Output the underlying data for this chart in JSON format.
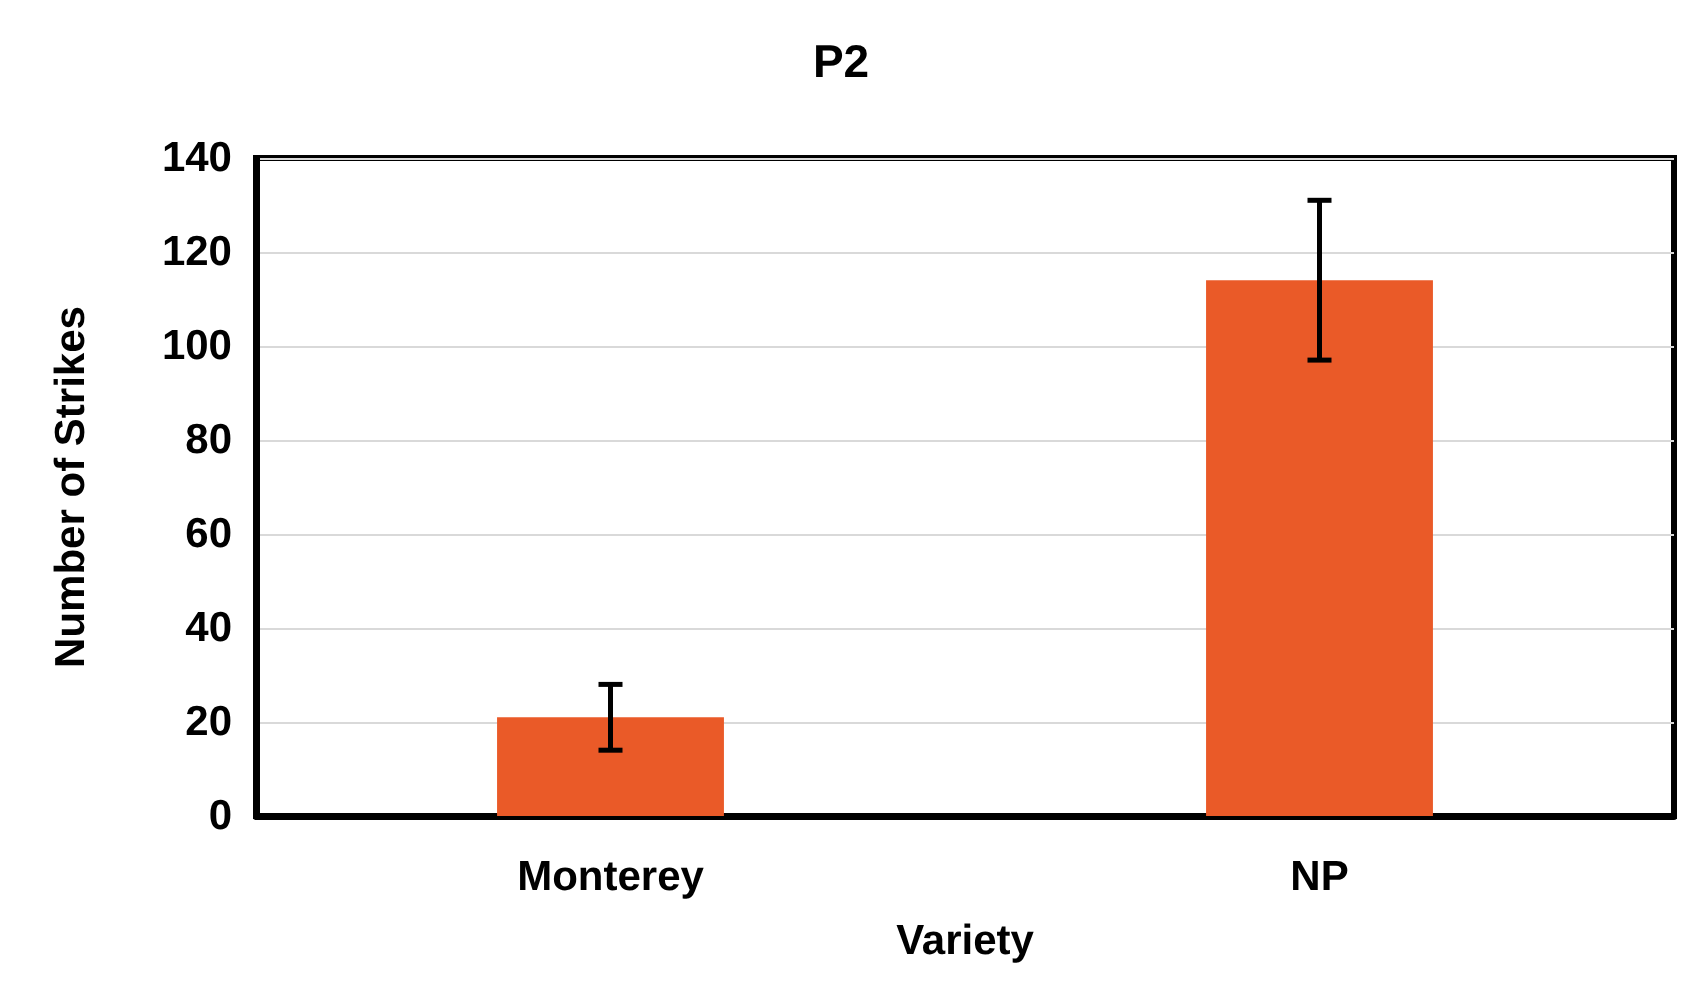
{
  "chart_data": {
    "type": "bar",
    "title": "P2",
    "xlabel": "Variety",
    "ylabel": "Number of Strikes",
    "categories": [
      "Monterey",
      "NP"
    ],
    "series": [
      {
        "color": "#ea5a28",
        "values": [
          21,
          114
        ],
        "errors": [
          7,
          17
        ]
      }
    ],
    "ylim": [
      0,
      140
    ],
    "yticks": [
      0,
      20,
      40,
      60,
      80,
      100,
      120,
      140
    ],
    "grid": "y"
  }
}
